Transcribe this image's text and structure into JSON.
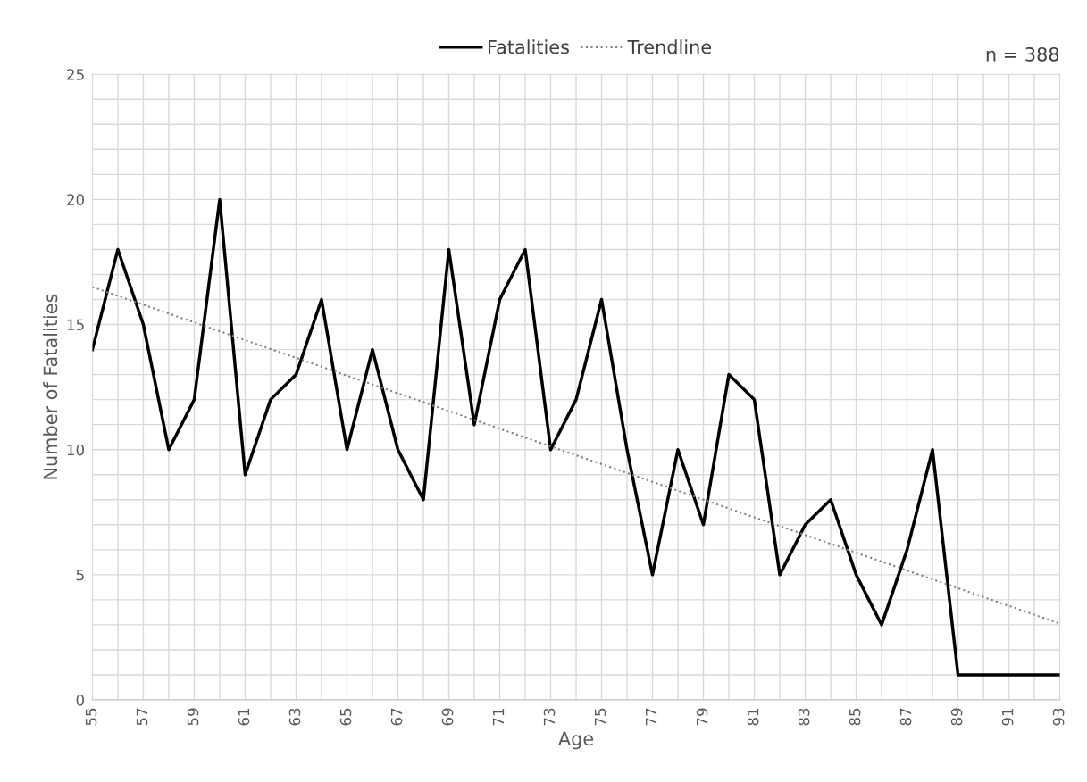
{
  "chart_data": {
    "type": "line",
    "xlabel": "Age",
    "ylabel": "Number of Fatalities",
    "x": [
      55,
      56,
      57,
      58,
      59,
      60,
      61,
      62,
      63,
      64,
      65,
      66,
      67,
      68,
      69,
      70,
      71,
      72,
      73,
      74,
      75,
      76,
      77,
      78,
      79,
      80,
      81,
      82,
      83,
      84,
      85,
      86,
      87,
      88,
      89,
      90,
      91,
      92,
      93
    ],
    "series": [
      {
        "name": "Fatalities",
        "color": "#000000",
        "line_style": "solid",
        "values": [
          14,
          18,
          15,
          10,
          12,
          20,
          9,
          12,
          13,
          16,
          10,
          14,
          10,
          8,
          18,
          11,
          16,
          18,
          10,
          12,
          16,
          10,
          5,
          10,
          7,
          13,
          12,
          5,
          7,
          8,
          5,
          3,
          6,
          10,
          1,
          1,
          1,
          1,
          1
        ]
      },
      {
        "name": "Trendline",
        "type": "line",
        "color": "#7f7f7f",
        "line_style": "dotted",
        "x": [
          55,
          93
        ],
        "values": [
          16.5,
          3.05
        ]
      }
    ],
    "xlim": [
      55,
      93
    ],
    "xticks": [
      55,
      {
        "value": 56,
        "label": null
      },
      57,
      {
        "value": 58,
        "label": null
      },
      59,
      {
        "value": 60,
        "label": null
      },
      61,
      {
        "value": 62,
        "label": null
      },
      63,
      {
        "value": 64,
        "label": null
      },
      65,
      {
        "value": 66,
        "label": null
      },
      67,
      {
        "value": 68,
        "label": null
      },
      69,
      {
        "value": 70,
        "label": null
      },
      71,
      {
        "value": 72,
        "label": null
      },
      73,
      {
        "value": 74,
        "label": null
      },
      75,
      {
        "value": 76,
        "label": null
      },
      77,
      {
        "value": 78,
        "label": null
      },
      79,
      {
        "value": 80,
        "label": null
      },
      81,
      {
        "value": 82,
        "label": null
      },
      83,
      {
        "value": 84,
        "label": null
      },
      85,
      {
        "value": 86,
        "label": null
      },
      87,
      {
        "value": 88,
        "label": null
      },
      89,
      {
        "value": 90,
        "label": null
      },
      91,
      {
        "value": 92,
        "label": null
      },
      93
    ],
    "ylim": [
      0,
      25
    ],
    "yticks": [
      0,
      {
        "value": 1,
        "label": null
      },
      {
        "value": 2,
        "label": null
      },
      {
        "value": 3,
        "label": null
      },
      {
        "value": 4,
        "label": null
      },
      5,
      {
        "value": 6,
        "label": null
      },
      {
        "value": 7,
        "label": null
      },
      {
        "value": 8,
        "label": null
      },
      {
        "value": 9,
        "label": null
      },
      10,
      {
        "value": 11,
        "label": null
      },
      {
        "value": 12,
        "label": null
      },
      {
        "value": 13,
        "label": null
      },
      {
        "value": 14,
        "label": null
      },
      15,
      {
        "value": 16,
        "label": null
      },
      {
        "value": 17,
        "label": null
      },
      {
        "value": 18,
        "label": null
      },
      {
        "value": 19,
        "label": null
      },
      20,
      {
        "value": 21,
        "label": null
      },
      {
        "value": 22,
        "label": null
      },
      {
        "value": 23,
        "label": null
      },
      {
        "value": 24,
        "label": null
      },
      25
    ],
    "grid": true,
    "legend": "top",
    "marker": "none",
    "annotations": [
      "n = 388"
    ]
  }
}
